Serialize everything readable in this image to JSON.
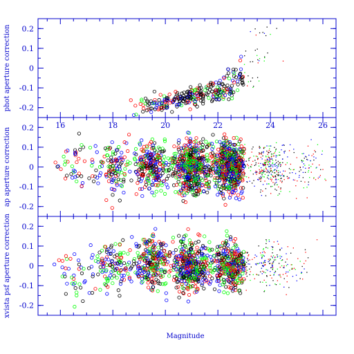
{
  "chart_data": {
    "type": "scatter",
    "xlabel": "Magnitude",
    "xlim": [
      15.15,
      26.5
    ],
    "x_tick_labels": [
      "16",
      "18",
      "20",
      "22",
      "24",
      "26"
    ],
    "x_ticks": [
      16,
      18,
      20,
      22,
      24,
      26
    ],
    "series_colors": [
      "#000000",
      "#ff0000",
      "#00ff00",
      "#0000ff"
    ],
    "panels": [
      {
        "ylabel": "phot aperture correction",
        "ylim": [
          -0.25,
          0.25
        ],
        "yticks": [
          -0.2,
          -0.1,
          0,
          0.1,
          0.2
        ],
        "ytick_labels": [
          "-0.2",
          "-0.1",
          "0",
          "0.1",
          "0.2"
        ],
        "x_tick_labels_visible": false,
        "density": [
          {
            "x": 19.2,
            "y": -0.2,
            "n": 20
          },
          {
            "x": 20.0,
            "y": -0.17,
            "n": 60
          },
          {
            "x": 21.0,
            "y": -0.15,
            "n": 90
          },
          {
            "x": 22.0,
            "y": -0.12,
            "n": 80
          },
          {
            "x": 22.8,
            "y": -0.05,
            "n": 40
          },
          {
            "x": 23.5,
            "y": 0.05,
            "n": 20
          },
          {
            "x": 24.0,
            "y": 0.18,
            "n": 10
          }
        ]
      },
      {
        "ylabel": "ap aperture correction",
        "ylim": [
          -0.25,
          0.25
        ],
        "yticks": [
          -0.2,
          -0.1,
          0,
          0.1,
          0.2
        ],
        "ytick_labels": [
          "-0.2",
          "-0.1",
          "0",
          "0.1",
          "0.2"
        ],
        "x_tick_labels_visible": true,
        "density": [
          {
            "x": 16.5,
            "y": 0.0,
            "n": 40
          },
          {
            "x": 18.0,
            "y": 0.0,
            "n": 120
          },
          {
            "x": 19.5,
            "y": 0.0,
            "n": 250
          },
          {
            "x": 21.0,
            "y": 0.0,
            "n": 500
          },
          {
            "x": 22.5,
            "y": 0.0,
            "n": 550
          },
          {
            "x": 24.0,
            "y": 0.0,
            "n": 300
          },
          {
            "x": 25.5,
            "y": 0.0,
            "n": 80
          }
        ]
      },
      {
        "ylabel": "xvista psf aperture correction",
        "ylim": [
          -0.25,
          0.25
        ],
        "yticks": [
          -0.2,
          -0.1,
          0,
          0.1,
          0.2
        ],
        "ytick_labels": [
          "-0.2",
          "-0.1",
          "0",
          "0.1",
          "0.2"
        ],
        "x_tick_labels_visible": false,
        "density": [
          {
            "x": 16.5,
            "y": -0.05,
            "n": 40
          },
          {
            "x": 18.0,
            "y": 0.0,
            "n": 120
          },
          {
            "x": 19.5,
            "y": 0.02,
            "n": 250
          },
          {
            "x": 21.0,
            "y": 0.0,
            "n": 400
          },
          {
            "x": 22.5,
            "y": 0.0,
            "n": 350
          },
          {
            "x": 24.0,
            "y": 0.0,
            "n": 150
          },
          {
            "x": 25.0,
            "y": 0.0,
            "n": 40
          }
        ]
      }
    ]
  }
}
